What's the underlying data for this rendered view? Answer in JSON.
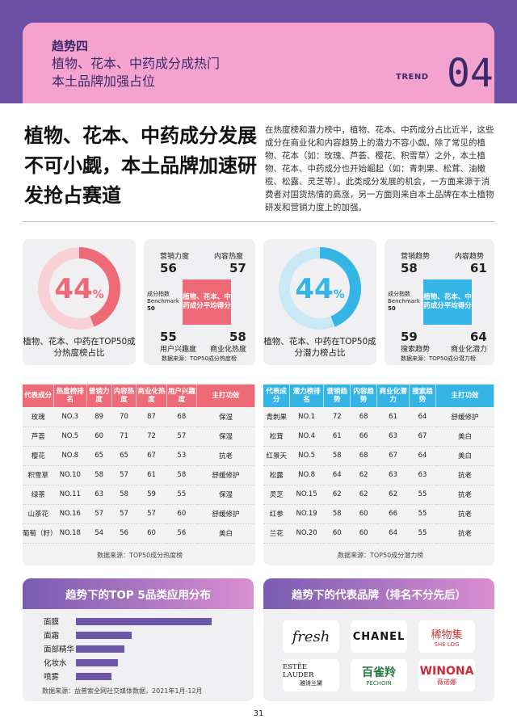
{
  "header": {
    "kicker": "趋势四",
    "title_line1": "植物、花本、中药成分成热门",
    "title_line2": "本土品牌加强占位",
    "trend_word": "TREND",
    "trend_num": "04"
  },
  "lead": {
    "title": "植物、花本、中药成分发展不可小觑，本土品牌加速研发抢占赛道",
    "body": "在热度榜和潜力榜中，植物、花本、中药成分占比近半，这些成分在商业化和内容趋势上的潜力不容小觑。除了常见的植物、花本（如：玫瑰、芦荟、樱花、积雪草）之外，本土植物、花本、中药成分也开始崛起（如：青刺果、松茸、油橄榄、松露、灵芝等）。此类成分发展的机会，一方面来源于消费者对国货热情的高涨，另一方面则来自本土品牌在本土植物研发和营销力度上的加强。"
  },
  "left_stats": {
    "donut_value": "44",
    "donut_unit": "%",
    "donut_fraction": 0.44,
    "caption": "植物、花本、中药在TOP50成分热度榜占比",
    "metric_tl_label": "营销力度",
    "metric_tl_value": "56",
    "metric_tr_label": "内容热度",
    "metric_tr_value": "57",
    "metric_bl_value": "55",
    "metric_bl_label": "用户兴趣度",
    "metric_br_value": "58",
    "metric_br_label": "商业化热度",
    "benchmark_label": "成分指数 Benchmark",
    "benchmark_value": "50",
    "tag": "植物、花本、中药成分平均得分",
    "source": "数据来源：TOP50成分热度榜"
  },
  "right_stats": {
    "donut_value": "44",
    "donut_unit": "%",
    "donut_fraction": 0.44,
    "caption": "植物、花本、中药在TOP50成分潜力榜占比",
    "metric_tl_label": "营销趋势",
    "metric_tl_value": "58",
    "metric_tr_label": "内容趋势",
    "metric_tr_value": "61",
    "metric_bl_value": "59",
    "metric_bl_label": "搜索趋势",
    "metric_br_value": "64",
    "metric_br_label": "商业化潜力",
    "benchmark_label": "成分指数 Benchmark",
    "benchmark_value": "50",
    "tag": "植物、花本、中药成分平均得分",
    "source": "数据来源：TOP50成分潜力榜"
  },
  "left_table": {
    "headers": [
      "代表成分",
      "热度榜排名",
      "营销力度",
      "内容热度",
      "商业化热度",
      "用户兴趣度",
      "主打功效"
    ],
    "rows": [
      [
        "玫瑰",
        "NO.3",
        "89",
        "70",
        "87",
        "68",
        "保湿"
      ],
      [
        "芦荟",
        "NO.5",
        "60",
        "71",
        "72",
        "57",
        "保湿"
      ],
      [
        "樱花",
        "NO.8",
        "65",
        "65",
        "67",
        "53",
        "抗老"
      ],
      [
        "积雪草",
        "NO.10",
        "58",
        "57",
        "61",
        "58",
        "舒缓修护"
      ],
      [
        "绿茶",
        "NO.11",
        "63",
        "58",
        "59",
        "55",
        "保湿"
      ],
      [
        "山茶花",
        "NO.16",
        "57",
        "57",
        "57",
        "60",
        "舒缓修护"
      ],
      [
        "葡萄（籽）",
        "NO.18",
        "54",
        "56",
        "60",
        "56",
        "美白"
      ]
    ],
    "source": "数据来源：TOP50成分热度榜"
  },
  "right_table": {
    "headers": [
      "代表成分",
      "潜力榜排名",
      "营销趋势",
      "内容趋势",
      "商业化潜力",
      "搜索趋势",
      "主打功效"
    ],
    "rows": [
      [
        "青刺果",
        "NO.1",
        "72",
        "68",
        "61",
        "64",
        "舒缓修护"
      ],
      [
        "松茸",
        "NO.4",
        "61",
        "66",
        "63",
        "67",
        "美白"
      ],
      [
        "红景天",
        "NO.5",
        "58",
        "68",
        "67",
        "64",
        "美白"
      ],
      [
        "松露",
        "NO.8",
        "64",
        "62",
        "63",
        "63",
        "抗老"
      ],
      [
        "灵芝",
        "NO.15",
        "62",
        "62",
        "62",
        "55",
        "抗老"
      ],
      [
        "红参",
        "NO.19",
        "58",
        "60",
        "66",
        "55",
        "抗老"
      ],
      [
        "兰花",
        "NO.20",
        "60",
        "60",
        "64",
        "55",
        "抗老"
      ]
    ],
    "source": "数据来源：TOP50成分潜力榜"
  },
  "top5": {
    "title": "趋势下的TOP 5品类应用分布",
    "categories": [
      "面膜",
      "面霜",
      "面部精华",
      "化妆水",
      "喷雾"
    ],
    "values": [
      1.0,
      0.41,
      0.36,
      0.31,
      0.26
    ],
    "source": "数据来源：益普索全网社交媒体数据，2021年1月-12月"
  },
  "brands": {
    "title": "趋势下的代表品牌（排名不分先后）",
    "items": [
      {
        "name": "fresh",
        "sub": ""
      },
      {
        "name": "CHANEL",
        "sub": ""
      },
      {
        "name": "稀物集",
        "sub": "SHE LOG"
      },
      {
        "name": "ESTĒE LAUDER",
        "sub": "雅诗兰黛"
      },
      {
        "name": "百雀羚",
        "sub": "PECHOIN"
      },
      {
        "name": "WINONA",
        "sub": "薇诺娜"
      }
    ]
  },
  "page_number": "31",
  "colors": {
    "purple": "#6b4fa3",
    "pink": "#f4a3cf",
    "red": "#ef6a77",
    "blue": "#35b4e6"
  }
}
